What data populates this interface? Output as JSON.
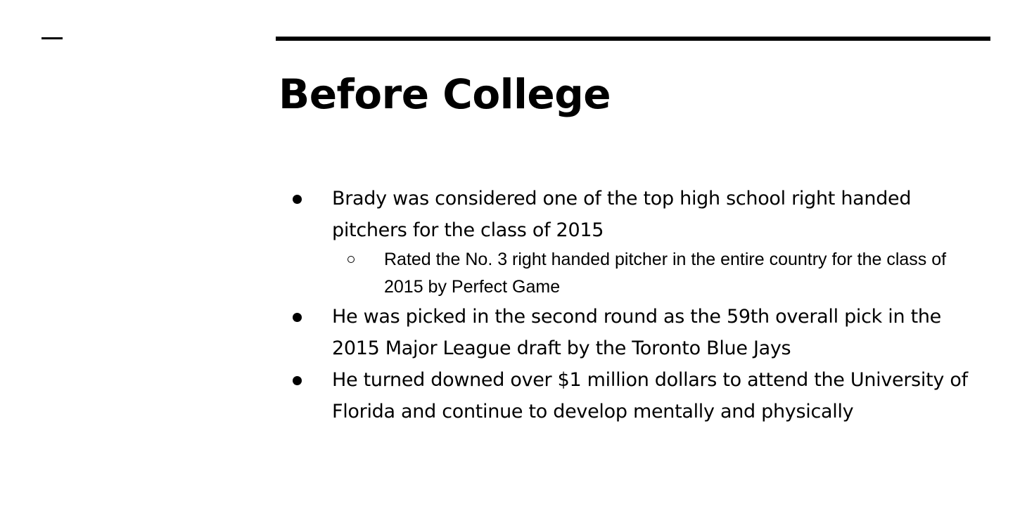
{
  "slide": {
    "title": "Before College",
    "bullets": [
      {
        "text": "Brady was considered one of the top high school right handed pitchers for the class of 2015",
        "sub": "Rated the No. 3 right handed pitcher in the entire country for the class of 2015 by Perfect Game"
      },
      {
        "text": "He was  picked in the second round as the 59th overall pick in the 2015 Major League draft by the Toronto Blue Jays"
      },
      {
        "text": "He turned downed over $1 million dollars to attend the University of Florida and continue to develop mentally and physically"
      }
    ]
  }
}
